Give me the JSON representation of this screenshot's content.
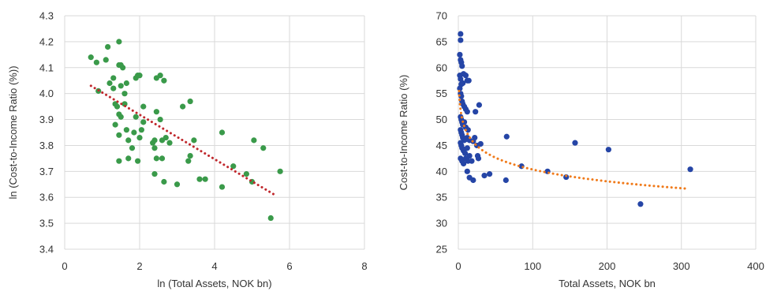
{
  "chart_data": [
    {
      "type": "scatter",
      "xlabel": "ln (Total Assets, NOK bn)",
      "ylabel": "ln (Cost-to-Income Ratio (%))",
      "xlim": [
        0,
        8
      ],
      "ylim": [
        3.4,
        4.3
      ],
      "x_ticks": [
        "0",
        "2",
        "4",
        "6",
        "8"
      ],
      "y_ticks": [
        "3.4",
        "3.5",
        "3.6",
        "3.7",
        "3.8",
        "3.9",
        "4.0",
        "4.1",
        "4.2",
        "4.3"
      ],
      "grid": true,
      "point_color": "#3a9a4a",
      "trend_color": "#c0282d",
      "trend_type": "linear",
      "trend_start": [
        0.7,
        4.03
      ],
      "trend_end": [
        5.6,
        3.61
      ],
      "points": [
        [
          0.7,
          4.14
        ],
        [
          0.85,
          4.12
        ],
        [
          0.9,
          4.01
        ],
        [
          1.1,
          4.13
        ],
        [
          1.15,
          4.18
        ],
        [
          1.2,
          4.04
        ],
        [
          1.3,
          4.06
        ],
        [
          1.3,
          4.02
        ],
        [
          1.35,
          3.96
        ],
        [
          1.4,
          3.95
        ],
        [
          1.45,
          4.2
        ],
        [
          1.45,
          4.11
        ],
        [
          1.5,
          4.11
        ],
        [
          1.55,
          4.1
        ],
        [
          1.5,
          4.03
        ],
        [
          1.6,
          4.0
        ],
        [
          1.65,
          4.04
        ],
        [
          1.6,
          3.96
        ],
        [
          1.45,
          3.92
        ],
        [
          1.5,
          3.91
        ],
        [
          1.35,
          3.88
        ],
        [
          1.45,
          3.84
        ],
        [
          1.65,
          3.86
        ],
        [
          1.7,
          3.82
        ],
        [
          1.7,
          3.75
        ],
        [
          1.45,
          3.74
        ],
        [
          1.8,
          3.79
        ],
        [
          1.85,
          3.85
        ],
        [
          1.9,
          3.91
        ],
        [
          1.9,
          4.06
        ],
        [
          1.95,
          4.07
        ],
        [
          2.0,
          4.07
        ],
        [
          2.0,
          3.83
        ],
        [
          2.05,
          3.86
        ],
        [
          2.1,
          3.95
        ],
        [
          2.1,
          3.89
        ],
        [
          1.95,
          3.74
        ],
        [
          2.35,
          3.81
        ],
        [
          2.4,
          3.82
        ],
        [
          2.45,
          3.93
        ],
        [
          2.4,
          3.79
        ],
        [
          2.4,
          3.69
        ],
        [
          2.45,
          3.75
        ],
        [
          2.45,
          4.06
        ],
        [
          2.55,
          4.07
        ],
        [
          2.55,
          3.9
        ],
        [
          2.6,
          3.82
        ],
        [
          2.65,
          4.05
        ],
        [
          2.6,
          3.75
        ],
        [
          2.65,
          3.66
        ],
        [
          2.7,
          3.83
        ],
        [
          2.8,
          3.81
        ],
        [
          3.0,
          3.65
        ],
        [
          3.15,
          3.95
        ],
        [
          3.35,
          3.97
        ],
        [
          3.3,
          3.74
        ],
        [
          3.35,
          3.76
        ],
        [
          3.45,
          3.82
        ],
        [
          3.6,
          3.67
        ],
        [
          3.75,
          3.67
        ],
        [
          4.2,
          3.85
        ],
        [
          4.2,
          3.64
        ],
        [
          4.5,
          3.72
        ],
        [
          4.85,
          3.69
        ],
        [
          5.0,
          3.66
        ],
        [
          5.05,
          3.82
        ],
        [
          5.3,
          3.79
        ],
        [
          5.5,
          3.52
        ],
        [
          5.75,
          3.7
        ]
      ]
    },
    {
      "type": "scatter",
      "xlabel": "Total Assets, NOK bn",
      "ylabel": "Cost-to-Income Ratio (%)",
      "xlim": [
        0,
        400
      ],
      "ylim": [
        25,
        70
      ],
      "x_ticks": [
        "0",
        "100",
        "200",
        "300",
        "400"
      ],
      "y_ticks": [
        "25",
        "30",
        "35",
        "40",
        "45",
        "50",
        "55",
        "60",
        "65",
        "70"
      ],
      "grid": true,
      "point_color": "#2545a6",
      "trend_color": "#f07a1a",
      "trend_type": "logarithmic",
      "trend_x_range": [
        1,
        305
      ],
      "trend_y_range": [
        55.5,
        36.7
      ],
      "points": [
        [
          3,
          66.5
        ],
        [
          3,
          65.3
        ],
        [
          2,
          62.5
        ],
        [
          3,
          61.5
        ],
        [
          4,
          61.0
        ],
        [
          5,
          60.3
        ],
        [
          2,
          58.5
        ],
        [
          3,
          57.8
        ],
        [
          4,
          56.8
        ],
        [
          6,
          57.0
        ],
        [
          7,
          58.8
        ],
        [
          10,
          58.5
        ],
        [
          12,
          57.5
        ],
        [
          14,
          57.5
        ],
        [
          2,
          56.0
        ],
        [
          3,
          55.0
        ],
        [
          4,
          54.5
        ],
        [
          5,
          53.5
        ],
        [
          6,
          53.0
        ],
        [
          8,
          52.5
        ],
        [
          10,
          52.0
        ],
        [
          12,
          51.5
        ],
        [
          3,
          50.5
        ],
        [
          4,
          50.0
        ],
        [
          5,
          49.5
        ],
        [
          6,
          49.0
        ],
        [
          8,
          49.5
        ],
        [
          10,
          48.5
        ],
        [
          13,
          48.0
        ],
        [
          3,
          48.0
        ],
        [
          4,
          47.5
        ],
        [
          5,
          47.0
        ],
        [
          6,
          46.5
        ],
        [
          8,
          46.0
        ],
        [
          10,
          46.2
        ],
        [
          12,
          46.5
        ],
        [
          15,
          46.0
        ],
        [
          3,
          45.5
        ],
        [
          4,
          45.0
        ],
        [
          5,
          44.5
        ],
        [
          7,
          44.0
        ],
        [
          9,
          43.5
        ],
        [
          12,
          44.5
        ],
        [
          15,
          43.0
        ],
        [
          3,
          42.5
        ],
        [
          5,
          42.0
        ],
        [
          7,
          41.5
        ],
        [
          10,
          42.5
        ],
        [
          13,
          42.0
        ],
        [
          18,
          42.0
        ],
        [
          23,
          51.5
        ],
        [
          28,
          52.8
        ],
        [
          22,
          46.5
        ],
        [
          20,
          45.8
        ],
        [
          25,
          45.0
        ],
        [
          30,
          45.3
        ],
        [
          26,
          43.0
        ],
        [
          27,
          42.5
        ],
        [
          12,
          40.0
        ],
        [
          15,
          38.8
        ],
        [
          20,
          38.3
        ],
        [
          35,
          39.2
        ],
        [
          42,
          39.5
        ],
        [
          65,
          46.7
        ],
        [
          64,
          38.3
        ],
        [
          85,
          41.0
        ],
        [
          120,
          40.0
        ],
        [
          145,
          38.9
        ],
        [
          157,
          45.5
        ],
        [
          202,
          44.2
        ],
        [
          245,
          33.7
        ],
        [
          312,
          40.4
        ]
      ]
    }
  ]
}
